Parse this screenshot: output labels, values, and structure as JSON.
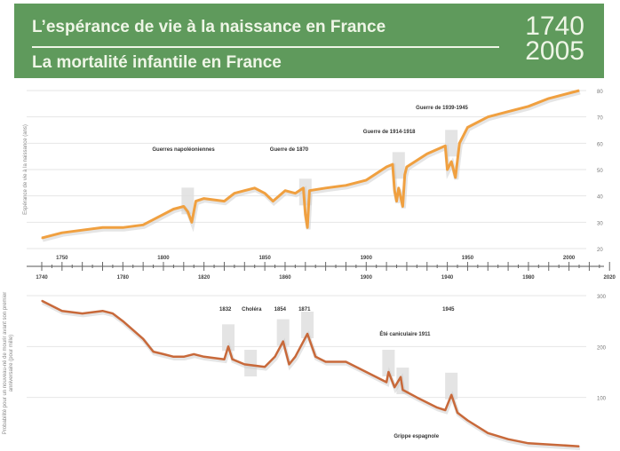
{
  "header": {
    "title_1": "L’espérance de vie à la naissance en France",
    "title_2": "La mortalité infantile en France",
    "year_start": "1740",
    "year_end": "2005"
  },
  "colors": {
    "banner": "#5f9a5c",
    "life_line": "#f0a040",
    "mortality_line": "#c8693a"
  },
  "chart_data": [
    {
      "type": "line",
      "title": "L’espérance de vie à la naissance en France",
      "ylabel": "Espérance de vie à la naissance (ans)",
      "ylim": [
        20,
        80
      ],
      "yticks": [
        "80",
        "70",
        "60",
        "50",
        "40",
        "30",
        "20"
      ],
      "x": [
        1740,
        1750,
        1760,
        1770,
        1780,
        1790,
        1800,
        1805,
        1810,
        1812,
        1814,
        1816,
        1820,
        1830,
        1835,
        1840,
        1845,
        1850,
        1854,
        1860,
        1865,
        1869,
        1870,
        1871,
        1872,
        1880,
        1890,
        1900,
        1910,
        1913,
        1914,
        1915,
        1916,
        1918,
        1919,
        1920,
        1930,
        1939,
        1940,
        1942,
        1944,
        1946,
        1950,
        1960,
        1970,
        1980,
        1990,
        2005
      ],
      "values": [
        24,
        26,
        27,
        28,
        28,
        29,
        33,
        35,
        36,
        34,
        30,
        38,
        39,
        38,
        41,
        42,
        43,
        41,
        38,
        42,
        41,
        43,
        33,
        28,
        42,
        43,
        44,
        46,
        51,
        52,
        42,
        38,
        43,
        36,
        48,
        51,
        56,
        59,
        50,
        53,
        47,
        60,
        66,
        70,
        72,
        74,
        77,
        80
      ],
      "annotations": [
        {
          "text": "Guerres napoléoniennes",
          "year": 1812
        },
        {
          "text": "Guerre de 1870",
          "year": 1870
        },
        {
          "text": "Guerre de 1914-1918",
          "year": 1916
        },
        {
          "text": "Guerre de 1939-1945",
          "year": 1942
        }
      ]
    },
    {
      "type": "line",
      "title": "La mortalité infantile en France",
      "ylabel": "Probabilité pour un nouveau-né de mourir avant son premier anniversaire (pour mille)",
      "ylim": [
        0,
        300
      ],
      "yticks": [
        "300",
        "200",
        "100"
      ],
      "x": [
        1740,
        1750,
        1760,
        1770,
        1775,
        1780,
        1790,
        1795,
        1800,
        1805,
        1810,
        1815,
        1820,
        1830,
        1832,
        1834,
        1840,
        1850,
        1855,
        1859,
        1862,
        1865,
        1871,
        1875,
        1880,
        1890,
        1900,
        1910,
        1911,
        1914,
        1917,
        1918,
        1925,
        1935,
        1939,
        1942,
        1945,
        1950,
        1960,
        1970,
        1980,
        2005
      ],
      "values": [
        290,
        270,
        265,
        270,
        265,
        250,
        215,
        190,
        185,
        180,
        180,
        185,
        180,
        175,
        200,
        175,
        165,
        160,
        180,
        210,
        165,
        180,
        225,
        180,
        170,
        170,
        150,
        130,
        150,
        120,
        140,
        115,
        100,
        80,
        75,
        105,
        70,
        55,
        30,
        18,
        10,
        4
      ],
      "annotations": [
        {
          "text": "Choléra",
          "year": 1843
        },
        {
          "text": "1832",
          "year": 1832
        },
        {
          "text": "1854",
          "year": 1859
        },
        {
          "text": "1871",
          "year": 1871
        },
        {
          "text": "Été caniculaire 1911",
          "year": 1911
        },
        {
          "text": "Grippe espagnole",
          "year": 1918
        },
        {
          "text": "1945",
          "year": 1942
        }
      ]
    }
  ],
  "axis": {
    "top_labels": [
      "1750",
      "1800",
      "1850",
      "1900",
      "1950",
      "2000"
    ],
    "bottom_labels": [
      "1740",
      "1780",
      "1820",
      "1860",
      "1900",
      "1940",
      "1980",
      "2020"
    ]
  }
}
